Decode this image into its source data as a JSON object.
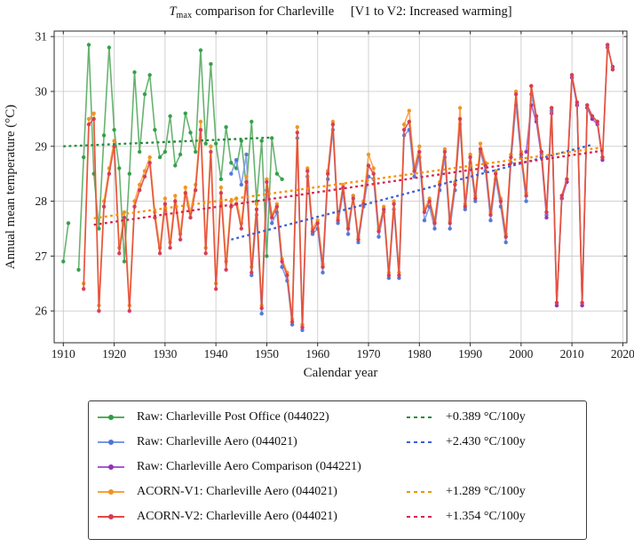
{
  "title": {
    "prefix_symbol": "T",
    "prefix_sub": "max",
    "main": "comparison for Charleville",
    "bracket": "[V1 to V2: Increased warming]"
  },
  "axes": {
    "xlabel": "Calendar year",
    "ylabel": "Annual mean temperature (°C)",
    "x_ticks": [
      1910,
      1920,
      1930,
      1940,
      1950,
      1960,
      1970,
      1980,
      1990,
      2000,
      2010,
      2020
    ],
    "y_ticks": [
      26,
      27,
      28,
      29,
      30,
      31
    ]
  },
  "chart_data": {
    "type": "line",
    "title": "Tmax comparison for Charleville [V1 to V2: Increased warming]",
    "xlabel": "Calendar year",
    "ylabel": "Annual mean temperature (°C)",
    "xlim": [
      1908.2,
      2020.8
    ],
    "ylim": [
      25.42,
      31.1
    ],
    "grid": true,
    "legend_position": "below",
    "series": [
      {
        "id": "raw-post-office",
        "name": "Raw: Charleville Post Office (044022)",
        "color": "#57ab60",
        "marker_color": "#2e9e44",
        "start_year": 1910,
        "values": [
          26.9,
          27.6,
          null,
          26.75,
          28.8,
          30.85,
          28.5,
          27.5,
          29.2,
          30.8,
          29.3,
          28.6,
          26.9,
          28.5,
          30.35,
          28.9,
          29.95,
          30.3,
          29.3,
          28.8,
          28.9,
          29.55,
          28.65,
          28.85,
          29.6,
          29.25,
          28.9,
          30.75,
          29.05,
          30.5,
          29.05,
          28.4,
          29.35,
          28.7,
          28.6,
          29.1,
          28.25,
          29.45,
          28.0,
          29.1,
          27.0,
          29.15,
          28.5,
          28.4
        ]
      },
      {
        "id": "raw-aero",
        "name": "Raw: Charleville Aero (044021)",
        "color": "#7b97e3",
        "marker_color": "#4f74d8",
        "start_year": 1943,
        "values": [
          28.5,
          28.75,
          28.3,
          28.85,
          26.65,
          27.75,
          25.95,
          28.2,
          27.6,
          27.8,
          26.8,
          26.55,
          25.75,
          29.15,
          25.65,
          28.45,
          27.4,
          27.5,
          26.7,
          28.4,
          29.3,
          27.6,
          28.15,
          27.4,
          28.1,
          27.25,
          27.9,
          28.45,
          28.4,
          27.35,
          27.8,
          26.6,
          27.85,
          26.6,
          29.2,
          29.3,
          28.45,
          28.8,
          27.65,
          27.9,
          27.5,
          28.2,
          28.8,
          27.5,
          28.2,
          29.4,
          27.85,
          28.7,
          28.0,
          28.9,
          28.55,
          27.65,
          28.4,
          27.9,
          27.25,
          28.7,
          29.75,
          28.8,
          28.0,
          29.95,
          29.5,
          28.85,
          27.75,
          29.65,
          26.1,
          28.05,
          28.35,
          30.25,
          29.75,
          26.1,
          29.7,
          29.5
        ]
      },
      {
        "id": "raw-aero-comparison",
        "name": "Raw: Charleville Aero Comparison (044221)",
        "color": "#a75bd0",
        "marker_color": "#9232b8",
        "start_year": 2001,
        "values": [
          28.9,
          29.75,
          29.45,
          28.8,
          27.7,
          29.6,
          26.1,
          28.05,
          28.35,
          30.25,
          29.75,
          26.1,
          29.7,
          29.5,
          29.4,
          28.75,
          30.8,
          30.45
        ]
      },
      {
        "id": "acorn-v1",
        "name": "ACORN-V1: Charleville Aero (044021)",
        "color": "#f9a13a",
        "marker_color": "#f0921e",
        "start_year": 1914,
        "values": [
          26.5,
          29.5,
          29.6,
          26.1,
          28.0,
          28.6,
          29.1,
          27.15,
          27.8,
          26.1,
          28.0,
          28.3,
          28.55,
          28.8,
          27.8,
          27.15,
          28.05,
          27.25,
          28.1,
          27.4,
          28.25,
          27.8,
          28.3,
          29.45,
          27.15,
          29.0,
          26.5,
          28.25,
          26.9,
          28.0,
          28.05,
          27.6,
          28.45,
          26.8,
          27.95,
          26.1,
          28.4,
          27.75,
          27.95,
          26.95,
          26.7,
          25.85,
          29.35,
          25.75,
          28.6,
          27.5,
          27.65,
          26.85,
          28.55,
          29.45,
          27.7,
          28.3,
          27.55,
          28.1,
          27.35,
          28.0,
          28.85,
          28.6,
          27.5,
          27.9,
          26.7,
          28.0,
          26.7,
          29.4,
          29.65,
          28.6,
          29.0,
          27.85,
          28.05,
          27.65,
          28.35,
          28.95,
          27.65,
          28.35,
          29.7,
          27.95,
          28.85,
          28.1,
          29.05,
          28.7,
          27.8,
          28.55,
          28.05,
          27.4,
          28.85,
          30.0,
          28.9,
          28.15,
          30.1,
          29.55,
          28.9,
          27.8,
          29.7,
          26.15,
          28.1,
          28.4,
          30.3,
          29.8,
          26.15,
          29.75,
          29.55,
          29.45,
          28.8,
          30.85,
          30.4
        ]
      },
      {
        "id": "acorn-v2",
        "name": "ACORN-V2: Charleville Aero (044021)",
        "color": "#e4493e",
        "marker_color": "#d63a55",
        "start_year": 1914,
        "values": [
          26.4,
          29.4,
          29.5,
          26.0,
          27.9,
          28.5,
          29.0,
          27.05,
          27.7,
          26.0,
          27.9,
          28.2,
          28.45,
          28.7,
          27.7,
          27.05,
          27.95,
          27.15,
          28.0,
          27.3,
          28.15,
          27.7,
          28.2,
          29.3,
          27.05,
          28.9,
          26.4,
          28.15,
          26.75,
          27.9,
          27.95,
          27.5,
          28.35,
          26.7,
          27.85,
          26.05,
          28.35,
          27.7,
          27.9,
          26.9,
          26.65,
          25.8,
          29.25,
          25.7,
          28.55,
          27.45,
          27.6,
          26.8,
          28.5,
          29.4,
          27.65,
          28.25,
          27.5,
          28.05,
          27.3,
          27.95,
          28.65,
          28.5,
          27.45,
          27.85,
          26.65,
          27.95,
          26.65,
          29.3,
          29.45,
          28.55,
          28.9,
          27.8,
          28.0,
          27.6,
          28.3,
          28.9,
          27.6,
          28.3,
          29.5,
          27.9,
          28.8,
          28.05,
          28.95,
          28.65,
          27.75,
          28.5,
          28.0,
          27.35,
          28.8,
          29.95,
          28.85,
          28.1,
          30.1,
          29.55,
          28.9,
          27.8,
          29.7,
          26.15,
          28.1,
          28.4,
          30.3,
          29.8,
          26.15,
          29.75,
          29.55,
          29.45,
          28.8,
          30.85,
          30.4
        ]
      }
    ],
    "trend_lines": [
      {
        "id": "trend-post-office",
        "label": "+0.389 °C/100y",
        "color": "#1f8b3b",
        "x": [
          1910,
          1951
        ],
        "y": [
          29.0,
          29.16
        ]
      },
      {
        "id": "trend-raw-aero",
        "label": "+2.430 °C/100y",
        "color": "#3a5fd0",
        "x": [
          1943,
          2014
        ],
        "y": [
          27.3,
          29.03
        ]
      },
      {
        "id": "trend-acorn-v1",
        "label": "+1.289 °C/100y",
        "color": "#f59200",
        "x": [
          1916,
          2016
        ],
        "y": [
          27.69,
          28.98
        ]
      },
      {
        "id": "trend-acorn-v2",
        "label": "+1.354 °C/100y",
        "color": "#d62350",
        "x": [
          1916,
          2016
        ],
        "y": [
          27.57,
          28.92
        ]
      }
    ]
  }
}
